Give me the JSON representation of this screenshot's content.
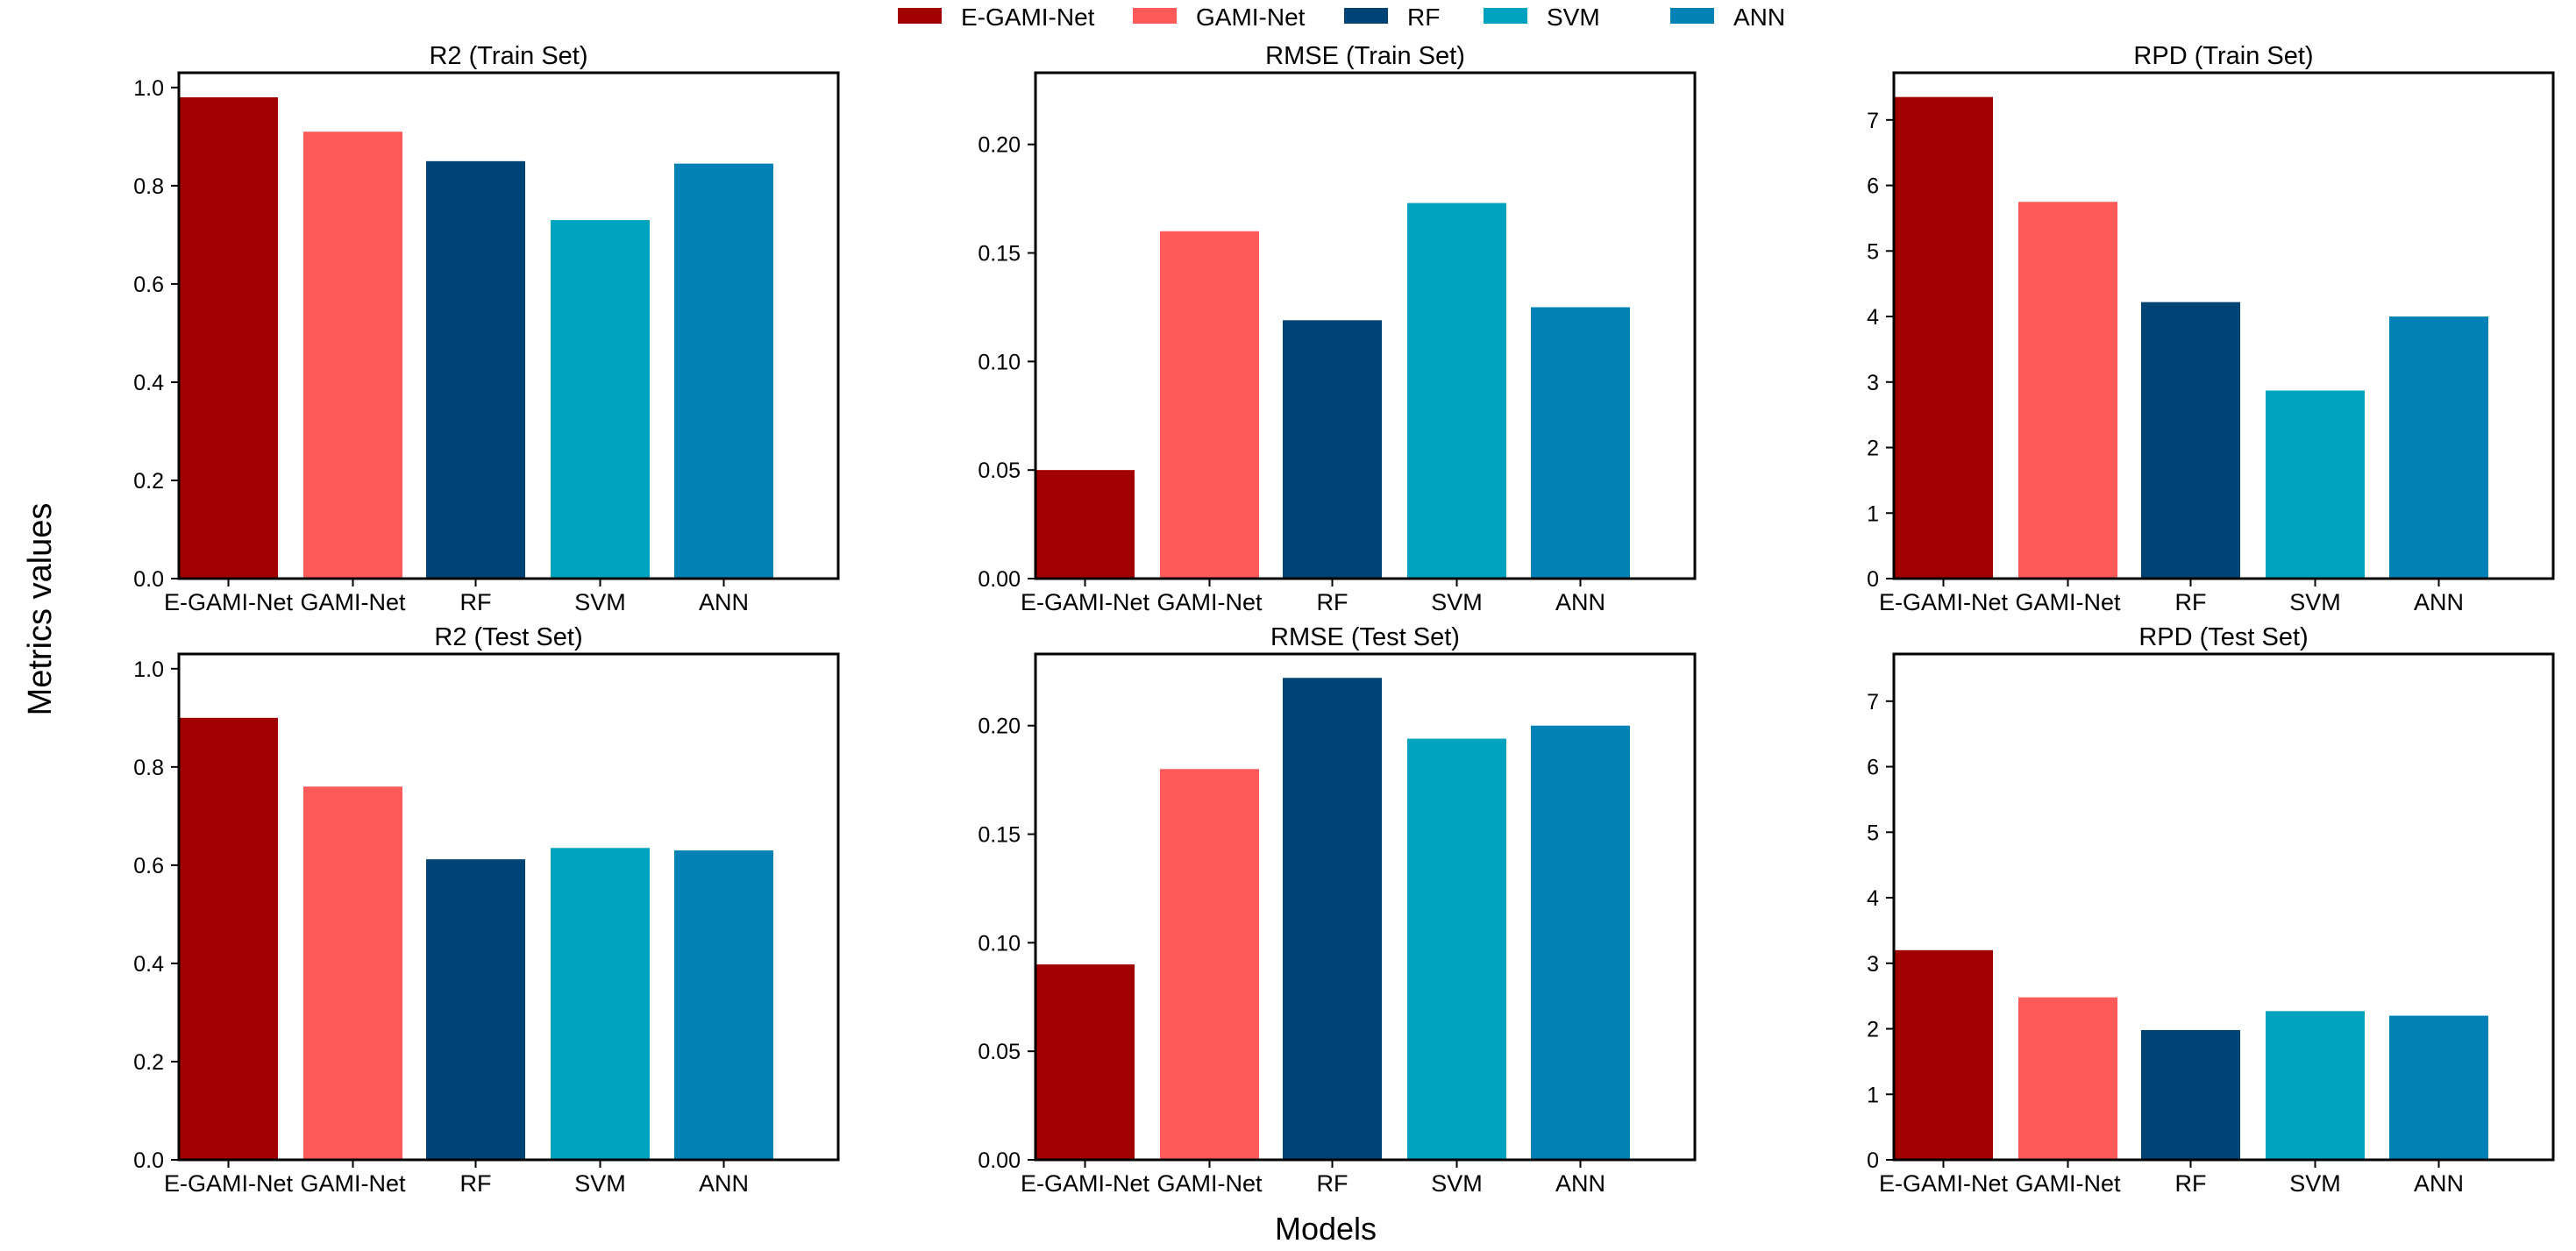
{
  "figure": {
    "ylabel": "Metrics values",
    "xlabel": "Models"
  },
  "legend": {
    "placement": "top-center",
    "entries": [
      {
        "name": "E-GAMI-Net",
        "color": "#a10000"
      },
      {
        "name": "GAMI-Net",
        "color": "#ff5a5a"
      },
      {
        "name": "RF",
        "color": "#004475"
      },
      {
        "name": "SVM",
        "color": "#00a3bf"
      },
      {
        "name": "ANN",
        "color": "#0082b6"
      }
    ]
  },
  "chart_data": [
    {
      "type": "bar",
      "title": "R2 (Train Set)",
      "categories": [
        "E-GAMI-Net",
        "GAMI-Net",
        "RF",
        "SVM",
        "ANN"
      ],
      "values": [
        0.98,
        0.91,
        0.85,
        0.73,
        0.845
      ],
      "ylim": [
        0,
        1.03
      ],
      "yticks": [
        0.0,
        0.2,
        0.4,
        0.6,
        0.8,
        1.0
      ],
      "ytick_labels": [
        "0.0",
        "0.2",
        "0.4",
        "0.6",
        "0.8",
        "1.0"
      ],
      "xlabel": "",
      "ylabel": ""
    },
    {
      "type": "bar",
      "title": "RMSE (Train Set)",
      "categories": [
        "E-GAMI-Net",
        "GAMI-Net",
        "RF",
        "SVM",
        "ANN"
      ],
      "values": [
        0.05,
        0.16,
        0.119,
        0.173,
        0.125
      ],
      "ylim": [
        0,
        0.233
      ],
      "yticks": [
        0.0,
        0.05,
        0.1,
        0.15,
        0.2
      ],
      "ytick_labels": [
        "0.00",
        "0.05",
        "0.10",
        "0.15",
        "0.20"
      ],
      "xlabel": "",
      "ylabel": ""
    },
    {
      "type": "bar",
      "title": "RPD (Train Set)",
      "categories": [
        "E-GAMI-Net",
        "GAMI-Net",
        "RF",
        "SVM",
        "ANN"
      ],
      "values": [
        7.35,
        5.75,
        4.22,
        2.87,
        4.0
      ],
      "ylim": [
        0,
        7.72
      ],
      "yticks": [
        0,
        1,
        2,
        3,
        4,
        5,
        6,
        7
      ],
      "ytick_labels": [
        "0",
        "1",
        "2",
        "3",
        "4",
        "5",
        "6",
        "7"
      ],
      "xlabel": "",
      "ylabel": ""
    },
    {
      "type": "bar",
      "title": "R2 (Test Set)",
      "categories": [
        "E-GAMI-Net",
        "GAMI-Net",
        "RF",
        "SVM",
        "ANN"
      ],
      "values": [
        0.9,
        0.76,
        0.612,
        0.635,
        0.63
      ],
      "ylim": [
        0,
        1.03
      ],
      "yticks": [
        0.0,
        0.2,
        0.4,
        0.6,
        0.8,
        1.0
      ],
      "ytick_labels": [
        "0.0",
        "0.2",
        "0.4",
        "0.6",
        "0.8",
        "1.0"
      ],
      "xlabel": "",
      "ylabel": ""
    },
    {
      "type": "bar",
      "title": "RMSE (Test Set)",
      "categories": [
        "E-GAMI-Net",
        "GAMI-Net",
        "RF",
        "SVM",
        "ANN"
      ],
      "values": [
        0.09,
        0.18,
        0.222,
        0.194,
        0.2
      ],
      "ylim": [
        0,
        0.233
      ],
      "yticks": [
        0.0,
        0.05,
        0.1,
        0.15,
        0.2
      ],
      "ytick_labels": [
        "0.00",
        "0.05",
        "0.10",
        "0.15",
        "0.20"
      ],
      "xlabel": "",
      "ylabel": ""
    },
    {
      "type": "bar",
      "title": "RPD (Test Set)",
      "categories": [
        "E-GAMI-Net",
        "GAMI-Net",
        "RF",
        "SVM",
        "ANN"
      ],
      "values": [
        3.2,
        2.48,
        1.98,
        2.27,
        2.2
      ],
      "ylim": [
        0,
        7.72
      ],
      "yticks": [
        0,
        1,
        2,
        3,
        4,
        5,
        6,
        7
      ],
      "ytick_labels": [
        "0",
        "1",
        "2",
        "3",
        "4",
        "5",
        "6",
        "7"
      ],
      "xlabel": "",
      "ylabel": ""
    }
  ]
}
